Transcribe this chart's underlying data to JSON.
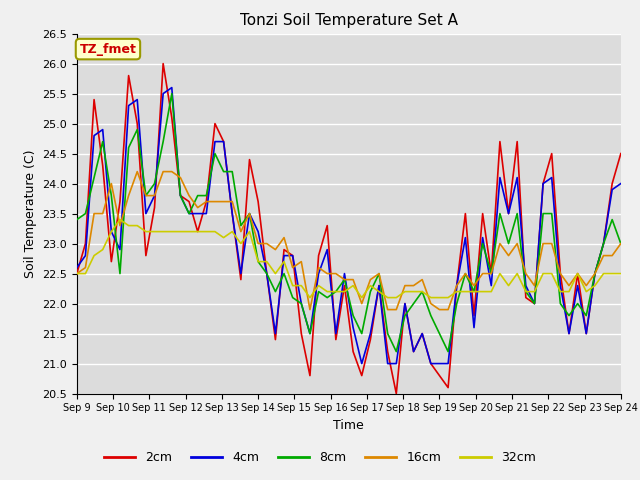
{
  "title": "Tonzi Soil Temperature Set A",
  "xlabel": "Time",
  "ylabel": "Soil Temperature (C)",
  "ylim": [
    20.5,
    26.5
  ],
  "annotation": "TZ_fmet",
  "bg_color": "#dcdcdc",
  "grid_color": "#ffffff",
  "series": {
    "2cm": {
      "color": "#dd0000",
      "lw": 1.2
    },
    "4cm": {
      "color": "#0000dd",
      "lw": 1.2
    },
    "8cm": {
      "color": "#00aa00",
      "lw": 1.2
    },
    "16cm": {
      "color": "#dd8800",
      "lw": 1.2
    },
    "32cm": {
      "color": "#cccc00",
      "lw": 1.2
    }
  },
  "x_ticks": [
    "Sep 9",
    "Sep 10",
    "Sep 11",
    "Sep 12",
    "Sep 13",
    "Sep 14",
    "Sep 15",
    "Sep 16",
    "Sep 17",
    "Sep 18",
    "Sep 19",
    "Sep 20",
    "Sep 21",
    "Sep 22",
    "Sep 23",
    "Sep 24"
  ],
  "data_2cm": [
    22.5,
    23.0,
    25.4,
    24.3,
    22.7,
    23.7,
    25.8,
    25.0,
    22.8,
    23.6,
    26.0,
    25.1,
    23.8,
    23.7,
    23.2,
    23.7,
    25.0,
    24.7,
    23.5,
    22.4,
    24.4,
    23.7,
    22.5,
    21.4,
    22.9,
    22.8,
    21.5,
    20.8,
    22.8,
    23.3,
    21.4,
    22.3,
    21.2,
    20.8,
    21.4,
    22.3,
    21.2,
    20.5,
    22.0,
    21.2,
    21.5,
    21.0,
    20.8,
    20.6,
    22.3,
    23.5,
    21.8,
    23.5,
    22.5,
    24.7,
    23.5,
    24.7,
    22.1,
    22.0,
    24.0,
    24.5,
    22.5,
    21.5,
    22.5,
    21.5,
    22.5,
    23.0,
    24.0,
    24.5
  ],
  "data_4cm": [
    22.6,
    22.8,
    24.8,
    24.9,
    23.2,
    22.9,
    25.3,
    25.4,
    23.5,
    23.8,
    25.5,
    25.6,
    23.8,
    23.5,
    23.5,
    23.5,
    24.7,
    24.7,
    23.5,
    22.5,
    23.5,
    23.2,
    22.5,
    21.5,
    22.8,
    22.8,
    22.0,
    21.5,
    22.5,
    22.9,
    21.5,
    22.5,
    21.6,
    21.0,
    21.5,
    22.3,
    21.0,
    21.0,
    22.0,
    21.2,
    21.5,
    21.0,
    21.0,
    21.0,
    22.3,
    23.1,
    21.6,
    23.1,
    22.3,
    24.1,
    23.5,
    24.1,
    22.3,
    22.0,
    24.0,
    24.1,
    22.3,
    21.5,
    22.3,
    21.5,
    22.5,
    23.0,
    23.9,
    24.0
  ],
  "data_8cm": [
    23.4,
    23.5,
    24.1,
    24.7,
    23.8,
    22.5,
    24.6,
    24.9,
    23.8,
    24.0,
    24.7,
    25.5,
    23.8,
    23.5,
    23.8,
    23.8,
    24.5,
    24.2,
    24.2,
    23.3,
    23.5,
    22.7,
    22.5,
    22.2,
    22.5,
    22.1,
    22.0,
    21.5,
    22.2,
    22.1,
    22.2,
    22.4,
    21.8,
    21.5,
    22.2,
    22.5,
    21.5,
    21.2,
    21.8,
    22.0,
    22.2,
    21.8,
    21.5,
    21.2,
    22.0,
    22.5,
    22.2,
    23.0,
    22.5,
    23.5,
    23.0,
    23.5,
    22.2,
    22.0,
    23.5,
    23.5,
    22.0,
    21.8,
    22.0,
    21.8,
    22.5,
    23.0,
    23.4,
    23.0
  ],
  "data_16cm": [
    22.5,
    22.6,
    23.5,
    23.5,
    24.0,
    23.3,
    23.8,
    24.2,
    23.8,
    23.8,
    24.2,
    24.2,
    24.1,
    23.8,
    23.6,
    23.7,
    23.7,
    23.7,
    23.7,
    23.2,
    23.5,
    23.0,
    23.0,
    22.9,
    23.1,
    22.6,
    22.7,
    21.9,
    22.6,
    22.5,
    22.5,
    22.4,
    22.4,
    22.0,
    22.4,
    22.5,
    21.9,
    21.9,
    22.3,
    22.3,
    22.4,
    22.0,
    21.9,
    21.9,
    22.3,
    22.5,
    22.3,
    22.5,
    22.5,
    23.0,
    22.8,
    23.0,
    22.5,
    22.3,
    23.0,
    23.0,
    22.5,
    22.3,
    22.5,
    22.3,
    22.5,
    22.8,
    22.8,
    23.0
  ],
  "data_32cm": [
    22.5,
    22.5,
    22.8,
    22.9,
    23.2,
    23.4,
    23.3,
    23.3,
    23.2,
    23.2,
    23.2,
    23.2,
    23.2,
    23.2,
    23.2,
    23.2,
    23.2,
    23.1,
    23.2,
    23.0,
    23.2,
    22.7,
    22.7,
    22.5,
    22.7,
    22.3,
    22.3,
    22.1,
    22.3,
    22.2,
    22.2,
    22.2,
    22.3,
    22.1,
    22.3,
    22.2,
    22.1,
    22.1,
    22.2,
    22.2,
    22.2,
    22.1,
    22.1,
    22.1,
    22.2,
    22.2,
    22.2,
    22.2,
    22.2,
    22.5,
    22.3,
    22.5,
    22.2,
    22.2,
    22.5,
    22.5,
    22.2,
    22.2,
    22.5,
    22.2,
    22.3,
    22.5,
    22.5,
    22.5
  ]
}
